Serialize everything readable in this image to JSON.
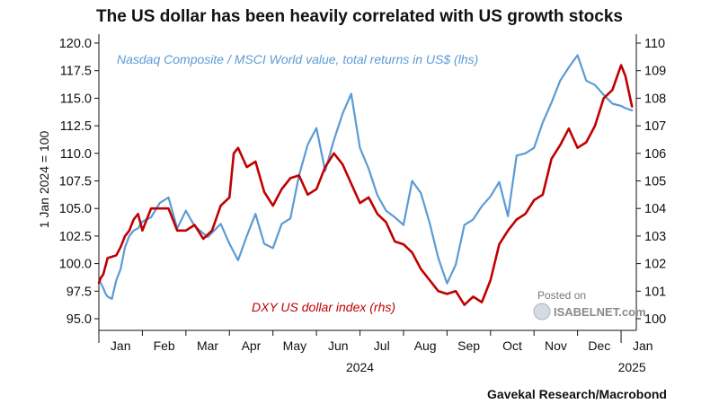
{
  "chart_data": {
    "type": "line",
    "title": "The US dollar has been heavily correlated with US growth stocks",
    "ylabel_left": "1 Jan 2024 = 100",
    "ylim_left": [
      95,
      120
    ],
    "yticks_left": [
      "95.0",
      "97.5",
      "100.0",
      "102.5",
      "105.0",
      "107.5",
      "110.0",
      "112.5",
      "115.0",
      "117.5",
      "120.0"
    ],
    "ylim_right": [
      100,
      110
    ],
    "yticks_right": [
      "100",
      "101",
      "102",
      "103",
      "104",
      "105",
      "106",
      "107",
      "108",
      "109",
      "110"
    ],
    "x_months": [
      "Jan",
      "Feb",
      "Mar",
      "Apr",
      "May",
      "Jun",
      "Jul",
      "Aug",
      "Sep",
      "Oct",
      "Nov",
      "Dec",
      "Jan"
    ],
    "x_years": [
      "2024",
      "2025"
    ],
    "annotations": {
      "nasdaq": "Nasdaq Composite / MSCI World value, total returns in US$ (lhs)",
      "dxy": "DXY US dollar index (rhs)"
    },
    "source": "Gavekal Research/Macrobond",
    "watermark": {
      "line1": "Posted on",
      "line2": "ISABELNET.com"
    },
    "colors": {
      "nasdaq": "#5b9bd5",
      "dxy": "#c00000",
      "text": "#111111"
    },
    "series": [
      {
        "name": "Nasdaq Composite / MSCI World value (lhs)",
        "axis": "left",
        "color": "#5b9bd5",
        "x": [
          0,
          0.05,
          0.1,
          0.15,
          0.2,
          0.3,
          0.4,
          0.5,
          0.6,
          0.7,
          0.8,
          0.9,
          1.0,
          1.2,
          1.4,
          1.6,
          1.8,
          2.0,
          2.2,
          2.5,
          2.8,
          3.0,
          3.2,
          3.4,
          3.6,
          3.8,
          4.0,
          4.2,
          4.4,
          4.6,
          4.8,
          5.0,
          5.2,
          5.4,
          5.6,
          5.8,
          6.0,
          6.2,
          6.4,
          6.6,
          6.8,
          7.0,
          7.2,
          7.4,
          7.6,
          7.8,
          8.0,
          8.2,
          8.4,
          8.6,
          8.8,
          9.0,
          9.2,
          9.4,
          9.6,
          9.8,
          10.0,
          10.2,
          10.4,
          10.6,
          10.8,
          11.0,
          11.2,
          11.4,
          11.6,
          11.8,
          12.0,
          12.1,
          12.25
        ],
        "y": [
          98.5,
          98.2,
          97.8,
          97.3,
          97.0,
          96.8,
          98.5,
          99.5,
          101.5,
          102.5,
          103.0,
          103.2,
          103.8,
          104.2,
          105.5,
          106.0,
          103.2,
          104.8,
          103.4,
          102.4,
          103.6,
          101.8,
          100.3,
          102.5,
          104.5,
          101.8,
          101.4,
          103.6,
          104.1,
          108.0,
          110.8,
          112.3,
          108.4,
          111.2,
          113.6,
          115.4,
          110.5,
          108.6,
          106.2,
          104.8,
          104.2,
          103.5,
          107.5,
          106.4,
          103.7,
          100.5,
          98.2,
          99.9,
          103.5,
          104.0,
          105.2,
          106.1,
          107.4,
          104.3,
          109.8,
          110.0,
          110.5,
          112.8,
          114.6,
          116.6,
          117.8,
          118.9,
          116.6,
          116.2,
          115.3,
          114.5,
          114.3,
          114.1,
          113.9
        ]
      },
      {
        "name": "DXY US dollar index (rhs)",
        "axis": "right",
        "color": "#c00000",
        "x": [
          0,
          0.05,
          0.1,
          0.15,
          0.2,
          0.4,
          0.5,
          0.6,
          0.7,
          0.8,
          0.9,
          1.0,
          1.2,
          1.4,
          1.6,
          1.8,
          2.0,
          2.2,
          2.4,
          2.6,
          2.8,
          3.0,
          3.1,
          3.2,
          3.4,
          3.6,
          3.8,
          4.0,
          4.2,
          4.4,
          4.6,
          4.8,
          5.0,
          5.2,
          5.4,
          5.6,
          5.8,
          6.0,
          6.2,
          6.4,
          6.6,
          6.8,
          7.0,
          7.2,
          7.4,
          7.6,
          7.8,
          8.0,
          8.2,
          8.4,
          8.6,
          8.8,
          9.0,
          9.2,
          9.4,
          9.6,
          9.8,
          10.0,
          10.2,
          10.4,
          10.6,
          10.8,
          11.0,
          11.2,
          11.4,
          11.6,
          11.8,
          12.0,
          12.1,
          12.25
        ],
        "y": [
          101.3,
          101.5,
          101.6,
          101.9,
          102.2,
          102.3,
          102.6,
          103.0,
          103.2,
          103.6,
          103.8,
          103.2,
          104.0,
          104.0,
          104.0,
          103.2,
          103.2,
          103.4,
          102.9,
          103.2,
          104.1,
          104.4,
          106.0,
          106.2,
          105.5,
          105.7,
          104.6,
          104.1,
          104.7,
          105.1,
          105.2,
          104.5,
          104.7,
          105.5,
          106.0,
          105.6,
          104.9,
          104.2,
          104.4,
          103.8,
          103.5,
          102.8,
          102.7,
          102.4,
          101.8,
          101.4,
          101.0,
          100.9,
          101.0,
          100.5,
          100.8,
          100.6,
          101.4,
          102.7,
          103.2,
          103.6,
          103.8,
          104.3,
          104.5,
          105.8,
          106.3,
          106.9,
          106.2,
          106.4,
          107.0,
          108.0,
          108.3,
          109.2,
          108.8,
          107.7
        ]
      }
    ]
  }
}
